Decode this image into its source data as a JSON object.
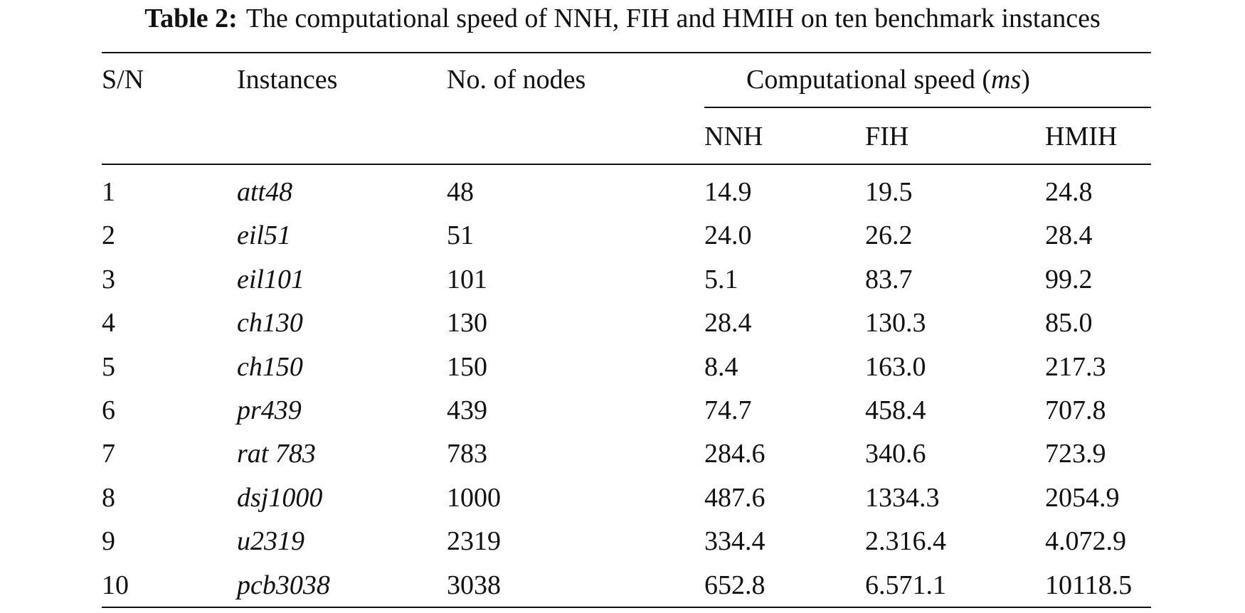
{
  "caption": {
    "label": "Table 2:",
    "text": "The computational speed of NNH, FIH and HMIH on ten benchmark instances"
  },
  "table": {
    "headers": [
      "S/N",
      "Instances",
      "No. of nodes"
    ],
    "group": {
      "before": "Computational speed (",
      "unit": "ms",
      "after": ")"
    },
    "subheaders": [
      "NNH",
      "FIH",
      "HMIH"
    ],
    "rows": [
      [
        "1",
        "att48",
        "48",
        "14.9",
        "19.5",
        "24.8"
      ],
      [
        "2",
        "eil51",
        "51",
        "24.0",
        "26.2",
        "28.4"
      ],
      [
        "3",
        "eil101",
        "101",
        "5.1",
        "83.7",
        "99.2"
      ],
      [
        "4",
        "ch130",
        "130",
        "28.4",
        "130.3",
        "85.0"
      ],
      [
        "5",
        "ch150",
        "150",
        "8.4",
        "163.0",
        "217.3"
      ],
      [
        "6",
        "pr439",
        "439",
        "74.7",
        "458.4",
        "707.8"
      ],
      [
        "7",
        "rat 783",
        "783",
        "284.6",
        "340.6",
        "723.9"
      ],
      [
        "8",
        "dsj1000",
        "1000",
        "487.6",
        "1334.3",
        "2054.9"
      ],
      [
        "9",
        "u2319",
        "2319",
        "334.4",
        "2.316.4",
        "4.072.9"
      ],
      [
        "10",
        "pcb3038",
        "3038",
        "652.8",
        "6.571.1",
        "10118.5"
      ]
    ]
  }
}
